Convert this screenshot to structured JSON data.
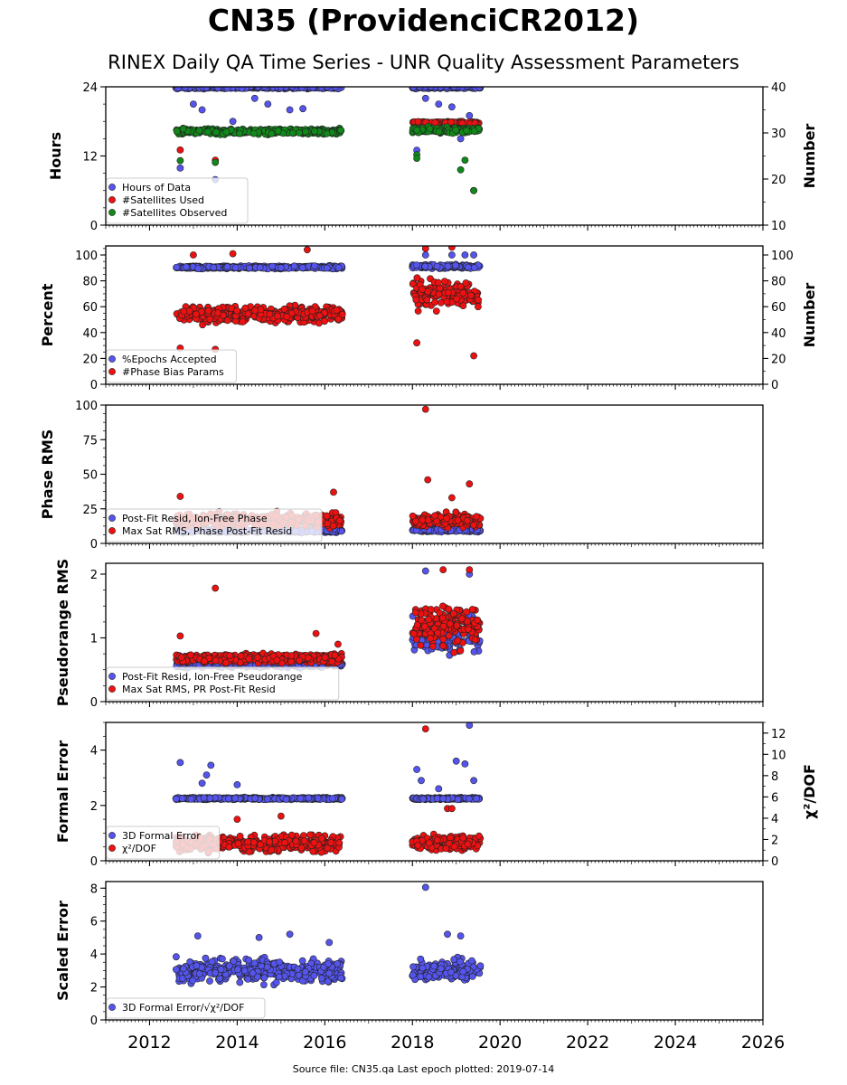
{
  "title": "CN35 (ProvidenciCR2012)",
  "subtitle": "RINEX Daily QA Time Series - UNR Quality Assessment Parameters",
  "footer": "Source file: CN35.qa Last epoch plotted: 2019-07-14",
  "colors": {
    "blue": "#5555ee",
    "red": "#ee1111",
    "green": "#11881a",
    "edge": "#222222"
  },
  "x_axis": {
    "range": [
      2011.0,
      2026.0
    ],
    "tick_labels": [
      "2012",
      "2014",
      "2016",
      "2018",
      "2020",
      "2022",
      "2024",
      "2026"
    ]
  },
  "chart_data": [
    {
      "type": "scatter",
      "ylabel": "Hours",
      "ylim": [
        0,
        24
      ],
      "yticks": [
        0,
        12,
        24
      ],
      "right_axis": {
        "ylabel": "Number",
        "ylim": [
          10,
          40
        ],
        "yticks": [
          10,
          20,
          30,
          40
        ]
      },
      "legend": "lower-left",
      "series": [
        {
          "name": "Hours of Data",
          "color": "blue",
          "axis": "left",
          "segments": [
            {
              "x": [
                2012.6,
                2016.4
              ],
              "y_base": 23.9,
              "spread": 0.3
            },
            {
              "x": [
                2018.0,
                2019.55
              ],
              "y_base": 23.9,
              "spread": 0.3
            }
          ],
          "outliers": [
            [
              2012.7,
              9.9
            ],
            [
              2013.0,
              21.0
            ],
            [
              2013.2,
              20.0
            ],
            [
              2013.5,
              7.9
            ],
            [
              2013.9,
              18.0
            ],
            [
              2014.4,
              22.0
            ],
            [
              2014.7,
              21.0
            ],
            [
              2015.2,
              20.0
            ],
            [
              2015.5,
              20.2
            ],
            [
              2018.1,
              13.0
            ],
            [
              2018.3,
              22.0
            ],
            [
              2018.6,
              21.0
            ],
            [
              2018.9,
              20.5
            ],
            [
              2019.1,
              15.0
            ],
            [
              2019.3,
              19.0
            ],
            [
              2019.4,
              6.0
            ]
          ]
        },
        {
          "name": "#Satellites Used",
          "color": "red",
          "axis": "right",
          "segments": [
            {
              "x": [
                2018.0,
                2019.55
              ],
              "y_base": 32.2,
              "spread": 0.4
            }
          ],
          "outliers": [
            [
              2012.7,
              26.3
            ],
            [
              2013.5,
              24.1
            ]
          ]
        },
        {
          "name": "#Satellites Observed",
          "color": "green",
          "axis": "right",
          "segments": [
            {
              "x": [
                2012.6,
                2016.4
              ],
              "y_base": 30.3,
              "spread": 0.8
            },
            {
              "x": [
                2018.0,
                2019.55
              ],
              "y_base": 30.6,
              "spread": 0.9
            }
          ],
          "outliers": [
            [
              2012.7,
              24.0
            ],
            [
              2013.5,
              23.6
            ],
            [
              2018.1,
              25.3
            ],
            [
              2018.1,
              24.5
            ],
            [
              2019.1,
              22.0
            ],
            [
              2019.2,
              24.1
            ],
            [
              2019.4,
              17.5
            ]
          ]
        }
      ]
    },
    {
      "type": "scatter",
      "ylabel": "Percent",
      "ylim": [
        0,
        107
      ],
      "yticks": [
        0,
        20,
        40,
        60,
        80,
        100
      ],
      "right_axis": {
        "ylabel": "Number",
        "ylim": [
          0,
          107
        ],
        "yticks": [
          0,
          20,
          40,
          60,
          80,
          100
        ]
      },
      "legend": "lower-left",
      "series": [
        {
          "name": "%Epochs Accepted",
          "color": "blue",
          "axis": "left",
          "segments": [
            {
              "x": [
                2012.6,
                2016.4
              ],
              "y_base": 90.5,
              "spread": 1.5
            },
            {
              "x": [
                2018.0,
                2019.55
              ],
              "y_base": 91.0,
              "spread": 2.0
            }
          ],
          "outliers": [
            [
              2018.3,
              100.0
            ],
            [
              2018.9,
              100.0
            ],
            [
              2019.2,
              100.0
            ],
            [
              2019.4,
              100.0
            ]
          ]
        },
        {
          "name": "#Phase Bias Params",
          "color": "red",
          "axis": "right",
          "segments": [
            {
              "x": [
                2012.6,
                2016.4
              ],
              "y_base": 54.0,
              "spread": 9.0
            },
            {
              "x": [
                2018.0,
                2019.55
              ],
              "y_base": 70.0,
              "spread": 15.0
            }
          ],
          "outliers": [
            [
              2012.7,
              28.0
            ],
            [
              2013.5,
              27.0
            ],
            [
              2013.0,
              100.0
            ],
            [
              2013.9,
              101.0
            ],
            [
              2015.6,
              104.0
            ],
            [
              2018.1,
              32.0
            ],
            [
              2018.3,
              105.0
            ],
            [
              2018.9,
              106.0
            ],
            [
              2019.4,
              22.0
            ]
          ]
        }
      ]
    },
    {
      "type": "scatter",
      "ylabel": "Phase RMS",
      "ylim": [
        0,
        100
      ],
      "yticks": [
        0,
        25,
        50,
        75,
        100
      ],
      "legend": "lower-left",
      "series": [
        {
          "name": "Post-Fit Resid, Ion-Free Phase",
          "color": "blue",
          "axis": "left",
          "segments": [
            {
              "x": [
                2012.6,
                2016.4
              ],
              "y_base": 9.0,
              "spread": 1.5
            },
            {
              "x": [
                2018.0,
                2019.55
              ],
              "y_base": 9.5,
              "spread": 1.5
            }
          ],
          "outliers": []
        },
        {
          "name": "Max Sat RMS, Phase Post-Fit Resid",
          "color": "red",
          "axis": "left",
          "segments": [
            {
              "x": [
                2012.6,
                2016.4
              ],
              "y_base": 17.0,
              "spread": 7.0
            },
            {
              "x": [
                2018.0,
                2019.55
              ],
              "y_base": 17.0,
              "spread": 7.0
            }
          ],
          "outliers": [
            [
              2012.7,
              34.0
            ],
            [
              2016.2,
              37.0
            ],
            [
              2018.3,
              97.0
            ],
            [
              2018.35,
              46.0
            ],
            [
              2019.3,
              43.0
            ],
            [
              2018.9,
              33.0
            ]
          ]
        }
      ]
    },
    {
      "type": "scatter",
      "ylabel": "Pseudorange RMS",
      "ylim": [
        0,
        2.17
      ],
      "yticks": [
        0,
        1,
        2
      ],
      "legend": "lower-left",
      "series": [
        {
          "name": "Post-Fit Resid, Ion-Free Pseudorange",
          "color": "blue",
          "axis": "left",
          "segments": [
            {
              "x": [
                2012.6,
                2016.4
              ],
              "y_base": 0.58,
              "spread": 0.06
            },
            {
              "x": [
                2018.0,
                2019.55
              ],
              "y_base": 1.05,
              "spread": 0.4
            }
          ],
          "outliers": [
            [
              2018.3,
              2.05
            ],
            [
              2019.3,
              2.0
            ]
          ]
        },
        {
          "name": "Max Sat RMS, PR Post-Fit Resid",
          "color": "red",
          "axis": "left",
          "segments": [
            {
              "x": [
                2012.6,
                2016.4
              ],
              "y_base": 0.68,
              "spread": 0.1
            },
            {
              "x": [
                2018.0,
                2019.55
              ],
              "y_base": 1.2,
              "spread": 0.45
            }
          ],
          "outliers": [
            [
              2012.7,
              1.03
            ],
            [
              2013.5,
              1.78
            ],
            [
              2015.8,
              1.07
            ],
            [
              2016.3,
              0.9
            ],
            [
              2018.7,
              2.07
            ],
            [
              2019.3,
              2.07
            ]
          ]
        }
      ]
    },
    {
      "type": "scatter",
      "ylabel": "Formal Error",
      "ylim": [
        0,
        5.0
      ],
      "yticks": [
        0,
        2,
        4
      ],
      "right_axis": {
        "ylabel": "χ²/DOF",
        "ylim": [
          0,
          13.0
        ],
        "yticks": [
          0,
          2,
          4,
          6,
          8,
          10,
          12
        ]
      },
      "legend": "lower-left",
      "series": [
        {
          "name": "3D Formal Error",
          "color": "blue",
          "axis": "left",
          "segments": [
            {
              "x": [
                2012.6,
                2016.4
              ],
              "y_base": 2.25,
              "spread": 0.05
            },
            {
              "x": [
                2018.0,
                2019.55
              ],
              "y_base": 2.25,
              "spread": 0.05
            }
          ],
          "outliers": [
            [
              2012.7,
              3.55
            ],
            [
              2013.4,
              3.45
            ],
            [
              2013.3,
              3.1
            ],
            [
              2013.2,
              2.8
            ],
            [
              2014.0,
              2.75
            ],
            [
              2018.1,
              3.3
            ],
            [
              2018.2,
              2.9
            ],
            [
              2018.6,
              2.6
            ],
            [
              2019.0,
              3.6
            ],
            [
              2019.2,
              3.5
            ],
            [
              2019.3,
              4.9
            ],
            [
              2019.4,
              2.9
            ]
          ]
        },
        {
          "name": "χ²/DOF",
          "color": "red",
          "axis": "right",
          "segments": [
            {
              "x": [
                2012.6,
                2016.4
              ],
              "y_base": 1.6,
              "spread": 1.1
            },
            {
              "x": [
                2018.0,
                2019.55
              ],
              "y_base": 1.7,
              "spread": 1.0
            }
          ],
          "outliers": [
            [
              2018.3,
              12.4
            ],
            [
              2018.8,
              4.9
            ],
            [
              2018.9,
              4.9
            ],
            [
              2015.0,
              4.2
            ],
            [
              2014.0,
              3.9
            ]
          ]
        }
      ]
    },
    {
      "type": "scatter",
      "ylabel": "Scaled Error",
      "ylim": [
        0,
        8.4
      ],
      "yticks": [
        0,
        2,
        4,
        6,
        8
      ],
      "legend": "lower-left",
      "series": [
        {
          "name": "3D Formal Error/√χ²/DOF",
          "color": "blue",
          "axis": "left",
          "segments": [
            {
              "x": [
                2012.6,
                2016.4
              ],
              "y_base": 3.0,
              "spread": 1.0
            },
            {
              "x": [
                2018.0,
                2019.55
              ],
              "y_base": 3.0,
              "spread": 0.9
            }
          ],
          "outliers": [
            [
              2018.3,
              8.05
            ],
            [
              2018.8,
              5.2
            ],
            [
              2019.1,
              5.1
            ],
            [
              2013.1,
              5.1
            ],
            [
              2014.5,
              5.0
            ],
            [
              2015.2,
              5.2
            ],
            [
              2016.1,
              4.7
            ]
          ]
        }
      ]
    }
  ]
}
